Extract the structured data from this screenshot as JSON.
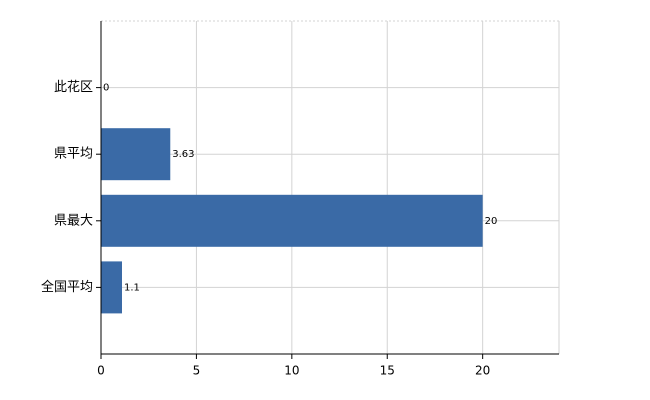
{
  "chart_data": {
    "type": "bar",
    "orientation": "horizontal",
    "categories": [
      "此花区",
      "県平均",
      "県最大",
      "全国平均"
    ],
    "values": [
      0,
      3.63,
      20,
      1.1
    ],
    "color": "#3a6aa6",
    "xlim": [
      0,
      24
    ],
    "xticks": [
      0,
      5,
      10,
      15,
      20
    ],
    "grid": true
  }
}
